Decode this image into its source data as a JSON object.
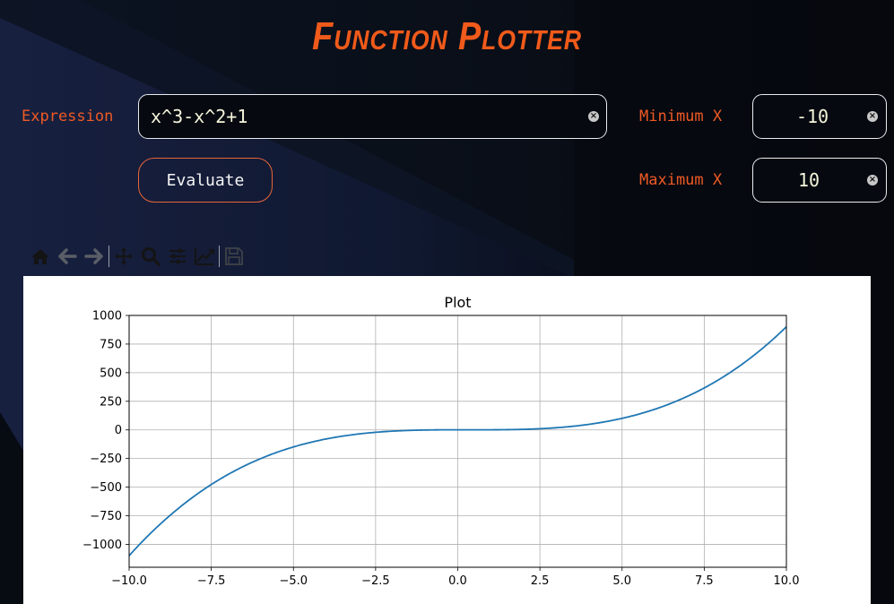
{
  "app": {
    "title": "Function Plotter"
  },
  "expression": {
    "label": "Expression",
    "value": "x^3-x^2+1"
  },
  "evaluate": {
    "label": "Evaluate"
  },
  "min_x": {
    "label": "Minimum X",
    "value": "-10"
  },
  "max_x": {
    "label": "Maximum X",
    "value": "10"
  },
  "toolbar": {
    "items": [
      {
        "name": "home-icon",
        "enabled": true
      },
      {
        "name": "back-icon",
        "enabled": false
      },
      {
        "name": "forward-icon",
        "enabled": false
      },
      {
        "name": "pan-icon",
        "enabled": true
      },
      {
        "name": "zoom-icon",
        "enabled": true
      },
      {
        "name": "configure-subplots-icon",
        "enabled": true
      },
      {
        "name": "edit-axis-icon",
        "enabled": true
      },
      {
        "name": "save-icon",
        "enabled": false
      }
    ]
  },
  "colors": {
    "accent": "#ee5a24",
    "line": "#1f77b4",
    "background": "#0a0f18"
  },
  "chart_data": {
    "type": "line",
    "title": "Plot",
    "function": "x^3-x^2+1",
    "xlim": [
      -10,
      10
    ],
    "ylim": [
      -1200,
      1000
    ],
    "xticks": [
      -10,
      -7.5,
      -5,
      -2.5,
      0,
      2.5,
      5,
      7.5,
      10
    ],
    "xtick_labels": [
      "−10.0",
      "−7.5",
      "−5.0",
      "−2.5",
      "0.0",
      "2.5",
      "5.0",
      "7.5",
      "10.0"
    ],
    "yticks": [
      1000,
      750,
      500,
      250,
      0,
      -250,
      -500,
      -750,
      -1000
    ],
    "ytick_labels": [
      "1000",
      "750",
      "500",
      "250",
      "0",
      "−250",
      "−500",
      "−750",
      "−1000"
    ],
    "grid": true,
    "series": [
      {
        "x": [
          -10,
          -9,
          -8,
          -7,
          -6,
          -5,
          -4,
          -3,
          -2,
          -1,
          0,
          1,
          2,
          3,
          4,
          5,
          6,
          7,
          8,
          9,
          10
        ],
        "y": [
          -1099,
          -809,
          -575,
          -391,
          -251,
          -149,
          -79,
          -35,
          -11,
          -1,
          1,
          1,
          5,
          19,
          49,
          101,
          181,
          295,
          449,
          649,
          901
        ]
      }
    ]
  }
}
